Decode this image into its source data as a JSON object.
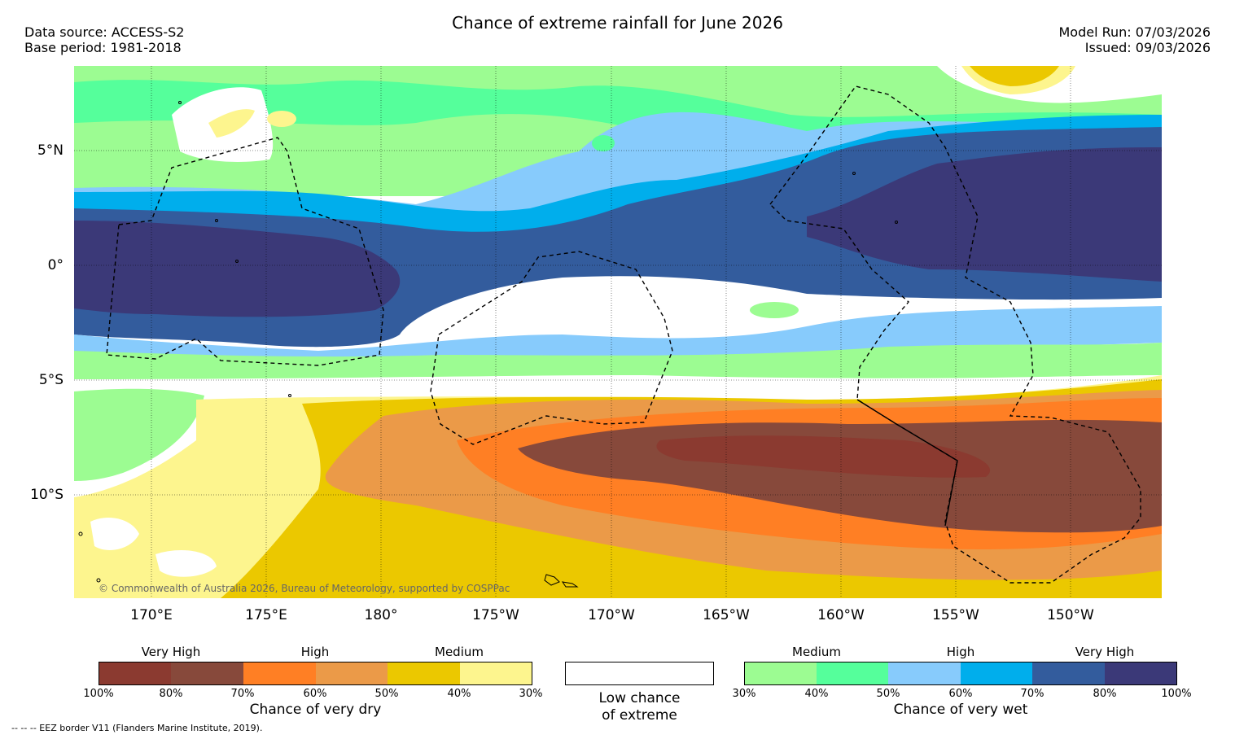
{
  "header": {
    "title": "Chance of extreme rainfall for June 2026",
    "data_source": "Data source: ACCESS-S2",
    "base_period": "Base period: 1981-2018",
    "model_run": "Model Run: 07/03/2026",
    "issued": "Issued: 09/03/2026"
  },
  "map": {
    "lat_labels": [
      "5°N",
      "0°",
      "5°S",
      "10°S"
    ],
    "lon_labels": [
      "170°E",
      "175°E",
      "180°",
      "175°W",
      "170°W",
      "165°W",
      "160°W",
      "155°W",
      "150°W"
    ],
    "copyright": "© Commonwealth of Australia 2026, Bureau of Meteorology, supported by COSPPac"
  },
  "legend_dry": {
    "title": "Chance of very dry",
    "levels": [
      "Very High",
      "High",
      "Medium"
    ],
    "ticks": [
      "100%",
      "80%",
      "70%",
      "60%",
      "50%",
      "40%",
      "30%"
    ],
    "colors": [
      "#8b3a30",
      "#87493b",
      "#ff7f24",
      "#eb9a48",
      "#ebc800",
      "#fdf58e"
    ]
  },
  "legend_low": {
    "line1": "Low chance",
    "line2": "of extreme"
  },
  "legend_wet": {
    "title": "Chance of very wet",
    "levels": [
      "Medium",
      "High",
      "Very High"
    ],
    "ticks": [
      "30%",
      "40%",
      "50%",
      "60%",
      "70%",
      "80%",
      "100%"
    ],
    "colors": [
      "#9cfc92",
      "#55ff9b",
      "#87cbfc",
      "#00aeec",
      "#335c9d",
      "#3b3978"
    ]
  },
  "footer": {
    "eez_note": "--  --  -- EEZ border V11 (Flanders Marine Institute, 2019)."
  }
}
